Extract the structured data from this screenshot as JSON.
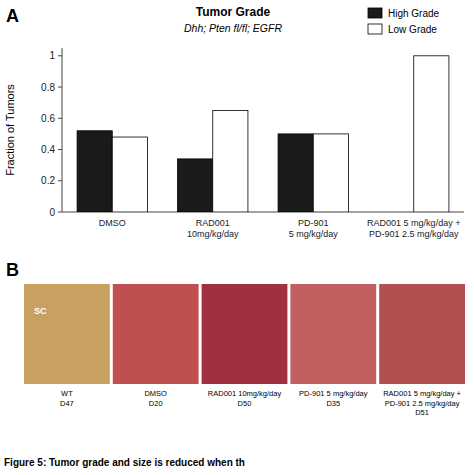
{
  "chart_data": [
    {
      "type": "bar",
      "title": "Tumor Grade",
      "subtitle": "Dhh; Pten fl/fl; EGFR",
      "y_label": "Fraction of Tumors",
      "categories": [
        "DMSO",
        "RAD001\n10mg/kg/day",
        "PD-901\n5 mg/kg/day",
        "RAD001 5 mg/kg/day +\nPD-901 2.5 mg/kg/day"
      ],
      "series": [
        {
          "name": "High Grade",
          "color": "#1a1a1a",
          "values": [
            0.52,
            0.34,
            0.5,
            0.0
          ]
        },
        {
          "name": "Low Grade",
          "color": "#ffffff",
          "values": [
            0.48,
            0.65,
            0.5,
            1.0
          ]
        }
      ],
      "ylim": [
        0,
        1.05
      ],
      "yticks": [
        0,
        0.2,
        0.4,
        0.6,
        0.8,
        1
      ],
      "legend": "upper right",
      "grid": false,
      "annotations": [
        "A"
      ]
    },
    {
      "type": "image",
      "colors": [
        "#c8a060",
        "#c05050",
        "#a03040",
        "#c06060",
        "#b05050"
      ],
      "categories": [
        "WT\nD47",
        "DMSO\nD20",
        "RAD001 10mg/kg/day\nD50",
        "PD-901 5 mg/kg/day\nD35",
        "RAD001 5 mg/kg/day +\nPD-901 2.5 mg/kg/day\nD51"
      ],
      "annotations": [
        "B",
        "SC",
        "Figure 5: Tumor grade and size is reduced when th"
      ]
    }
  ]
}
